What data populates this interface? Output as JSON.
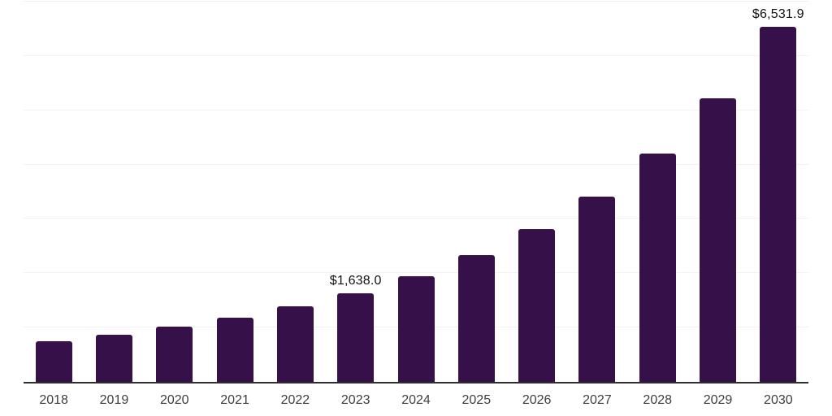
{
  "colors": {
    "background": "#ffffff",
    "bar": "#361149",
    "gridline": "#f2f2f2",
    "axis_line": "#2e2e2e",
    "data_label_text": "#111111",
    "tick_label_text": "#3e3e3e"
  },
  "chart_data": {
    "type": "bar",
    "title": "",
    "xlabel": "",
    "ylabel": "",
    "categories": [
      "2018",
      "2019",
      "2020",
      "2021",
      "2022",
      "2023",
      "2024",
      "2025",
      "2026",
      "2027",
      "2028",
      "2029",
      "2030"
    ],
    "values": [
      745,
      865,
      1015,
      1180,
      1390,
      1638.0,
      1945,
      2335,
      2815,
      3410,
      4205,
      5220,
      6531.9
    ],
    "labeled_points": {
      "2023": "$1,638.0",
      "2030": "$6,531.9"
    },
    "ylim": [
      0,
      7000
    ],
    "gridline_step": 1000,
    "grid": true,
    "legend": "none",
    "y_axis_labels_visible": false
  }
}
